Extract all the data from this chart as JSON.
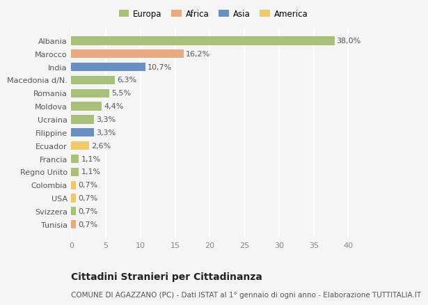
{
  "categories": [
    "Tunisia",
    "Svizzera",
    "USA",
    "Colombia",
    "Regno Unito",
    "Francia",
    "Ecuador",
    "Filippine",
    "Ucraina",
    "Moldova",
    "Romania",
    "Macedonia d/N.",
    "India",
    "Marocco",
    "Albania"
  ],
  "values": [
    0.7,
    0.7,
    0.7,
    0.7,
    1.1,
    1.1,
    2.6,
    3.3,
    3.3,
    4.4,
    5.5,
    6.3,
    10.7,
    16.2,
    38.0
  ],
  "labels": [
    "0,7%",
    "0,7%",
    "0,7%",
    "0,7%",
    "1,1%",
    "1,1%",
    "2,6%",
    "3,3%",
    "3,3%",
    "4,4%",
    "5,5%",
    "6,3%",
    "10,7%",
    "16,2%",
    "38,0%"
  ],
  "continents": [
    "Africa",
    "Europa",
    "America",
    "America",
    "Europa",
    "Europa",
    "America",
    "Asia",
    "Europa",
    "Europa",
    "Europa",
    "Europa",
    "Asia",
    "Africa",
    "Europa"
  ],
  "colors": {
    "Europa": "#a8c07a",
    "Africa": "#e8aa80",
    "Asia": "#6b8ec2",
    "America": "#f0c96e"
  },
  "legend_order": [
    "Europa",
    "Africa",
    "Asia",
    "America"
  ],
  "title": "Cittadini Stranieri per Cittadinanza",
  "subtitle": "COMUNE DI AGAZZANO (PC) - Dati ISTAT al 1° gennaio di ogni anno - Elaborazione TUTTITALIA.IT",
  "xlim": [
    0,
    41
  ],
  "xticks": [
    0,
    5,
    10,
    15,
    20,
    25,
    30,
    35,
    40
  ],
  "background_color": "#f5f5f5",
  "grid_color": "#ffffff",
  "bar_height": 0.65,
  "title_fontsize": 10,
  "subtitle_fontsize": 7.5,
  "tick_fontsize": 8,
  "label_fontsize": 8,
  "legend_fontsize": 8.5
}
